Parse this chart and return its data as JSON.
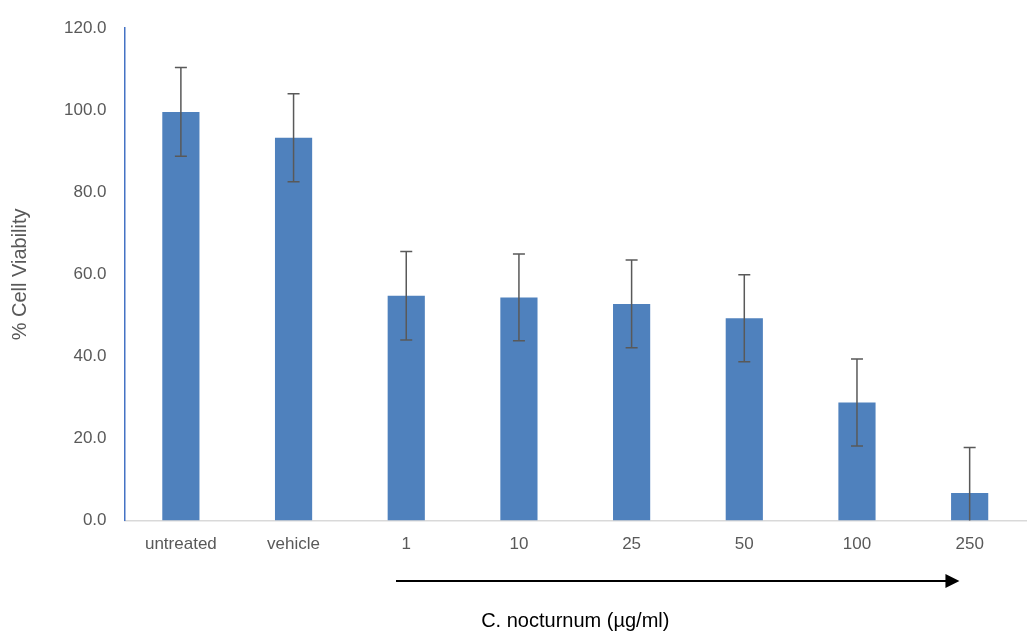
{
  "chart_data": {
    "type": "bar",
    "ylabel": "% Cell Viability",
    "xlabel": "C. nocturnum (µg/ml)",
    "categories": [
      "untreated",
      "vehicle",
      "1",
      "10",
      "25",
      "50",
      "100",
      "250"
    ],
    "values": [
      99.6,
      93.3,
      54.8,
      54.4,
      52.8,
      49.3,
      28.8,
      6.7
    ],
    "errors": [
      10.8,
      10.7,
      10.8,
      10.6,
      10.7,
      10.6,
      10.6,
      [
        0,
        17.8
      ]
    ],
    "color": "#4f81bd",
    "ylim": [
      0,
      120
    ],
    "yticks": [
      {
        "value": 0,
        "label": "0.0"
      },
      {
        "value": 20,
        "label": "20.0"
      },
      {
        "value": 40,
        "label": "40.0"
      },
      {
        "value": 60,
        "label": "60.0"
      },
      {
        "value": 80,
        "label": "80.0"
      },
      {
        "value": 100,
        "label": "100.0"
      },
      {
        "value": 120,
        "label": "120.0"
      }
    ],
    "grid": false,
    "legend": false
  }
}
